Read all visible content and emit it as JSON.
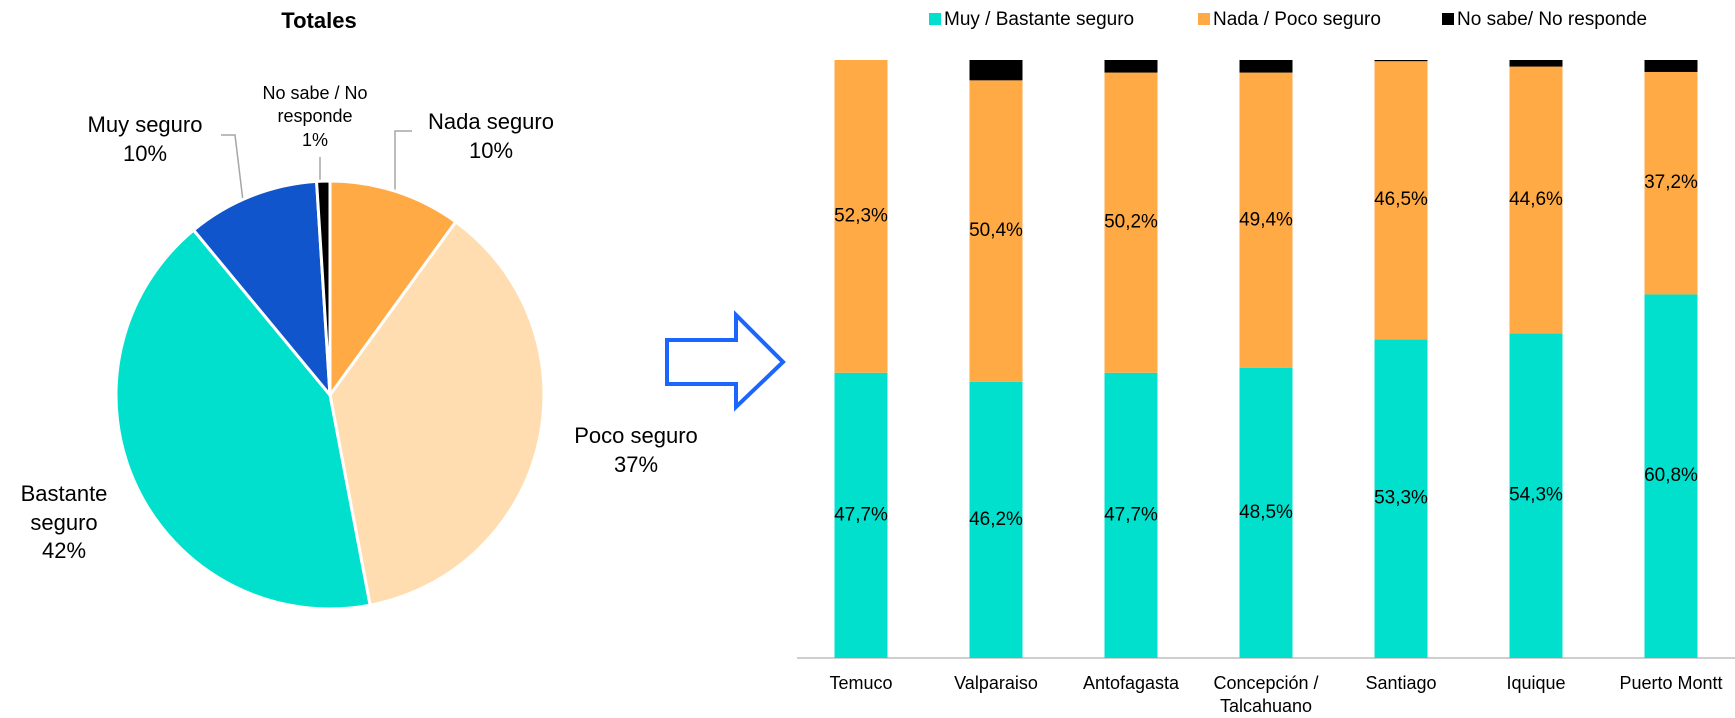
{
  "chart_data": [
    {
      "type": "pie",
      "title": "Totales",
      "categories": [
        "Nada seguro",
        "Poco seguro",
        "Bastante seguro",
        "Muy seguro",
        "No sabe / No responde"
      ],
      "values": [
        10,
        37,
        42,
        10,
        1
      ],
      "value_labels": [
        "10%",
        "37%",
        "42%",
        "10%",
        "1%"
      ],
      "colors": [
        "#FFAA44",
        "#FFDDB0",
        "#00E0CC",
        "#1155CC",
        "#000000"
      ]
    },
    {
      "type": "bar",
      "stacked": true,
      "legend": "top",
      "categories": [
        "Temuco",
        "Valparaiso",
        "Antofagasta",
        "Concepción / Talcahuano",
        "Santiago",
        "Iquique",
        "Puerto Montt"
      ],
      "series": [
        {
          "name": "Muy / Bastante seguro",
          "color": "#00E0CC",
          "values": [
            47.7,
            46.2,
            47.7,
            48.5,
            53.3,
            54.3,
            60.8
          ],
          "value_labels": [
            "47,7%",
            "46,2%",
            "47,7%",
            "48,5%",
            "53,3%",
            "54,3%",
            "60,8%"
          ]
        },
        {
          "name": "Nada / Poco seguro",
          "color": "#FFAA44",
          "values": [
            52.3,
            50.4,
            50.2,
            49.4,
            46.5,
            44.6,
            37.2
          ],
          "value_labels": [
            "52,3%",
            "50,4%",
            "50,2%",
            "49,4%",
            "46,5%",
            "44,6%",
            "37,2%"
          ]
        },
        {
          "name": "No sabe/ No responde",
          "color": "#000000",
          "values": [
            0,
            3.4,
            2.1,
            2.1,
            0.2,
            1.1,
            2.0
          ]
        }
      ]
    }
  ]
}
